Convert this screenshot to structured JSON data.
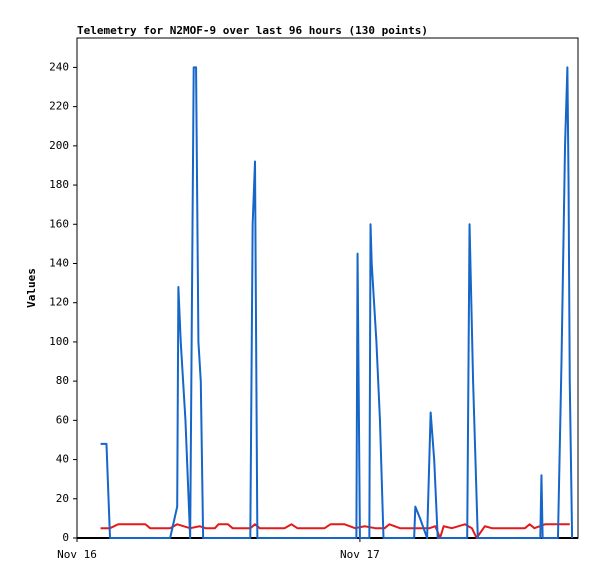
{
  "chart_data": {
    "type": "line",
    "title": "Telemetry for N2MOF-9 over last 96 hours (130 points)",
    "y_label": "Values",
    "xlim": [
      0,
      42.5
    ],
    "xticks": [
      {
        "value": 0,
        "label": "Nov 16"
      },
      {
        "value": 24,
        "label": "Nov 17"
      }
    ],
    "ylim": [
      0,
      255
    ],
    "yticks": [
      0,
      20,
      40,
      60,
      80,
      100,
      120,
      140,
      160,
      180,
      200,
      220,
      240
    ],
    "grid": false,
    "series": [
      {
        "color": "#000000",
        "x": [
          0,
          42.5
        ],
        "values": [
          0,
          0
        ]
      },
      {
        "color": "#e41a1a",
        "x": [
          2.0,
          2.8,
          3.5,
          5.8,
          6.2,
          7.9,
          8.5,
          9.6,
          10.4,
          10.9,
          11.7,
          12.0,
          12.8,
          13.2,
          14.7,
          15.1,
          15.5,
          17.6,
          18.2,
          18.7,
          21.0,
          21.5,
          22.7,
          23.6,
          24.4,
          25.3,
          26.1,
          26.5,
          27.4,
          29.9,
          30.4,
          30.8,
          31.1,
          31.8,
          32.9,
          33.5,
          33.9,
          34.6,
          35.2,
          38.0,
          38.4,
          38.8,
          39.7,
          41.8
        ],
        "values": [
          5,
          5,
          7,
          7,
          5,
          5,
          7,
          5,
          6,
          5,
          5,
          7,
          7,
          5,
          5,
          7,
          5,
          5,
          7,
          5,
          5,
          7,
          7,
          5,
          6,
          5,
          5,
          7,
          5,
          5,
          6,
          0,
          6,
          5,
          7,
          5,
          0,
          6,
          5,
          5,
          7,
          5,
          7,
          7
        ]
      },
      {
        "color": "#1566c8",
        "x": [
          2.0,
          2.5,
          2.8,
          7.9,
          8.5,
          8.6,
          8.8,
          9.2,
          9.6,
          9.9,
          10.1,
          10.3,
          10.5,
          10.7,
          14.7,
          14.9,
          15.1,
          15.3,
          23.7,
          23.8,
          24.0,
          24.8,
          24.9,
          25.0,
          25.4,
          25.7,
          26.0,
          28.6,
          28.7,
          29.1,
          29.7,
          30.0,
          30.3,
          30.6,
          33.1,
          33.3,
          33.6,
          34.0,
          39.3,
          39.4,
          39.5,
          40.8,
          41.1,
          41.4,
          41.6,
          41.7,
          41.8,
          42.0
        ],
        "values": [
          48,
          48,
          0,
          0,
          16,
          128,
          100,
          60,
          0,
          240,
          240,
          100,
          80,
          0,
          0,
          160,
          192,
          0,
          0,
          145,
          0,
          0,
          160,
          140,
          100,
          60,
          0,
          0,
          16,
          10,
          0,
          64,
          40,
          0,
          0,
          160,
          80,
          0,
          0,
          32,
          0,
          0,
          90,
          200,
          240,
          180,
          80,
          0
        ]
      }
    ]
  }
}
